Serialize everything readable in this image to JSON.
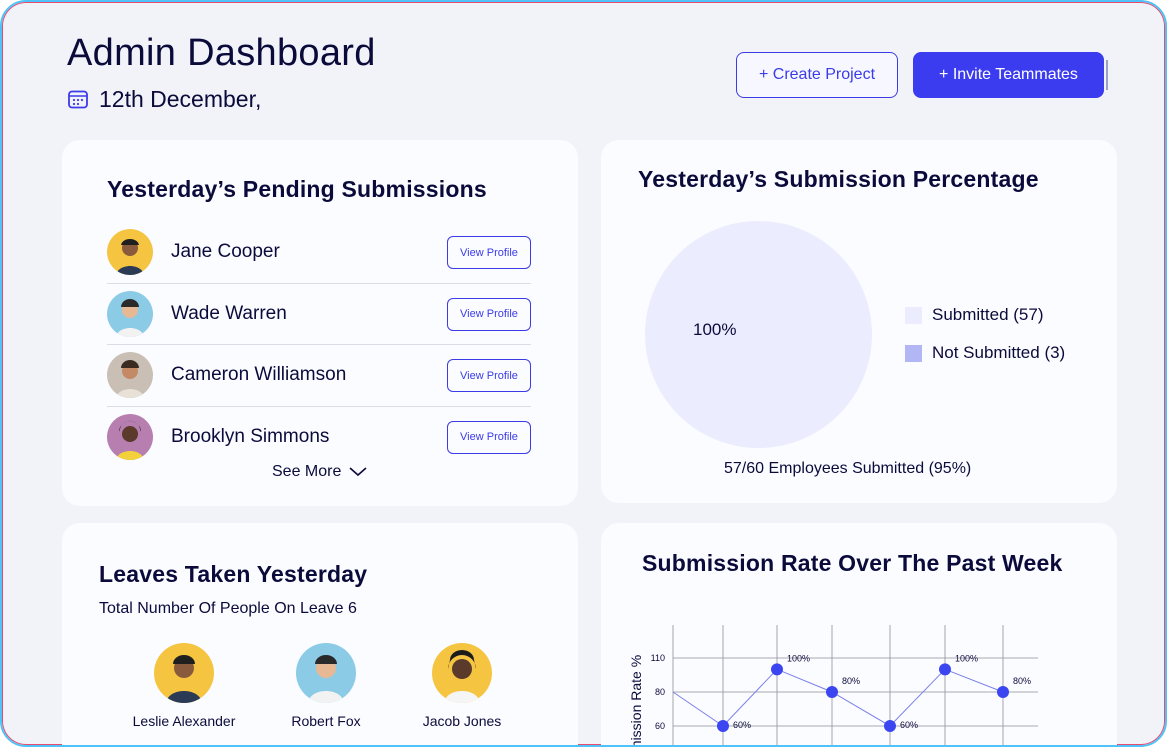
{
  "header": {
    "title": "Admin Dashboard",
    "date": "12th December,",
    "create_project_label": "+ Create Project",
    "invite_label": "+ Invite Teammates"
  },
  "pending": {
    "title": "Yesterday’s Pending Submissions",
    "view_label": "View Profile",
    "see_more_label": "See More",
    "people": [
      {
        "name": "Jane Cooper",
        "avatar_bg": "#f5c542"
      },
      {
        "name": "Wade Warren",
        "avatar_bg": "#8ccbe6"
      },
      {
        "name": "Cameron Williamson",
        "avatar_bg": "#c9bfb5"
      },
      {
        "name": "Brooklyn Simmons",
        "avatar_bg": "#b77fb0"
      }
    ]
  },
  "percentage": {
    "title": "Yesterday’s Submission Percentage",
    "pie_label": "100%",
    "legend": [
      {
        "label": "Submitted (57)",
        "color": "#ececff"
      },
      {
        "label": "Not Submitted (3)",
        "color": "#b3b6f5"
      }
    ],
    "footer": "57/60 Employees Submitted (95%)"
  },
  "leaves": {
    "title": "Leaves Taken Yesterday",
    "subtitle": "Total Number Of People On Leave 6",
    "people": [
      {
        "name": "Leslie Alexander",
        "avatar_bg": "#f5c542"
      },
      {
        "name": "Robert Fox",
        "avatar_bg": "#8ccbe6"
      },
      {
        "name": "Jacob Jones",
        "avatar_bg": "#f5c542"
      }
    ]
  },
  "rate": {
    "title": "Submission Rate Over The Past Week"
  },
  "chart_data": {
    "type": "line",
    "title": "Submission Rate Over The Past Week",
    "ylabel": "Submission Rate %",
    "y_ticks": [
      110,
      80,
      60
    ],
    "series": [
      {
        "values": [
          80,
          60,
          100,
          80,
          60,
          100,
          80
        ],
        "labels": [
          "",
          "60%",
          "100%",
          "80%",
          "60%",
          "100%",
          "80%"
        ],
        "color": "#3b46f0"
      }
    ]
  },
  "colors": {
    "accent": "#3b3bf0",
    "text": "#0b0b3b",
    "card": "#fbfcff",
    "background": "#f1f3f9"
  }
}
